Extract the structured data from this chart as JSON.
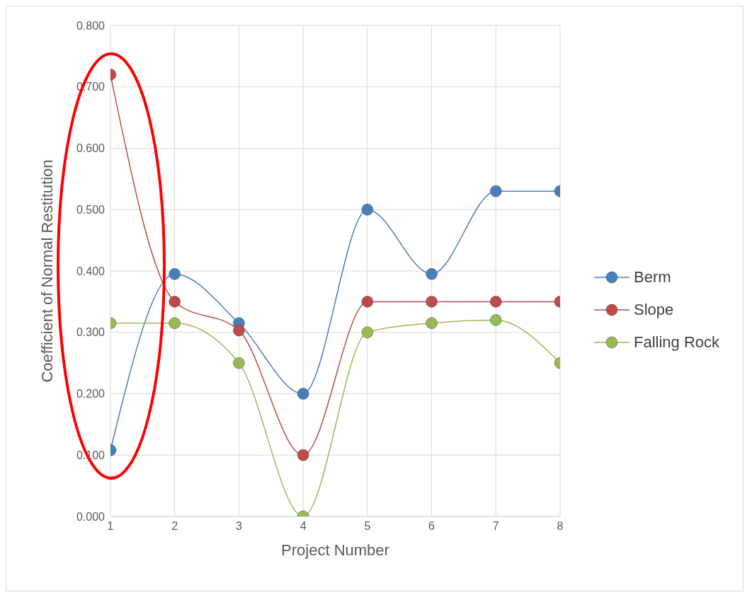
{
  "chart_data": {
    "type": "line",
    "xlabel": "Project Number",
    "ylabel": "Coefficient of Normal Restitution",
    "x": [
      1,
      2,
      3,
      4,
      5,
      6,
      7,
      8
    ],
    "xlim": [
      1,
      8
    ],
    "xticks": [
      1,
      2,
      3,
      4,
      5,
      6,
      7,
      8
    ],
    "ylim": [
      0,
      0.8
    ],
    "yticks": [
      {
        "value": 0,
        "label": "0.000"
      },
      {
        "value": 0.1,
        "label": "0.100"
      },
      {
        "value": 0.2,
        "label": "0.200"
      },
      {
        "value": 0.3,
        "label": "0.300"
      },
      {
        "value": 0.4,
        "label": "0.400"
      },
      {
        "value": 0.5,
        "label": "0.500"
      },
      {
        "value": 0.6,
        "label": "0.600"
      },
      {
        "value": 0.7,
        "label": "0.700"
      },
      {
        "value": 0.8,
        "label": "0.800"
      }
    ],
    "series": [
      {
        "name": "Berm",
        "color": "#4a7ebb",
        "values": [
          0.108,
          0.395,
          0.315,
          0.2,
          0.5,
          0.395,
          0.53,
          0.53
        ]
      },
      {
        "name": "Slope",
        "color": "#be4b48",
        "values": [
          0.72,
          0.35,
          0.303,
          0.1,
          0.35,
          0.35,
          0.35,
          0.35
        ]
      },
      {
        "name": "Falling Rock",
        "color": "#98b954",
        "values": [
          0.315,
          0.315,
          0.25,
          0,
          0.3,
          0.315,
          0.32,
          0.25
        ]
      }
    ],
    "grid": true,
    "legend": "right",
    "marker": "circle",
    "line_style": "solid"
  }
}
